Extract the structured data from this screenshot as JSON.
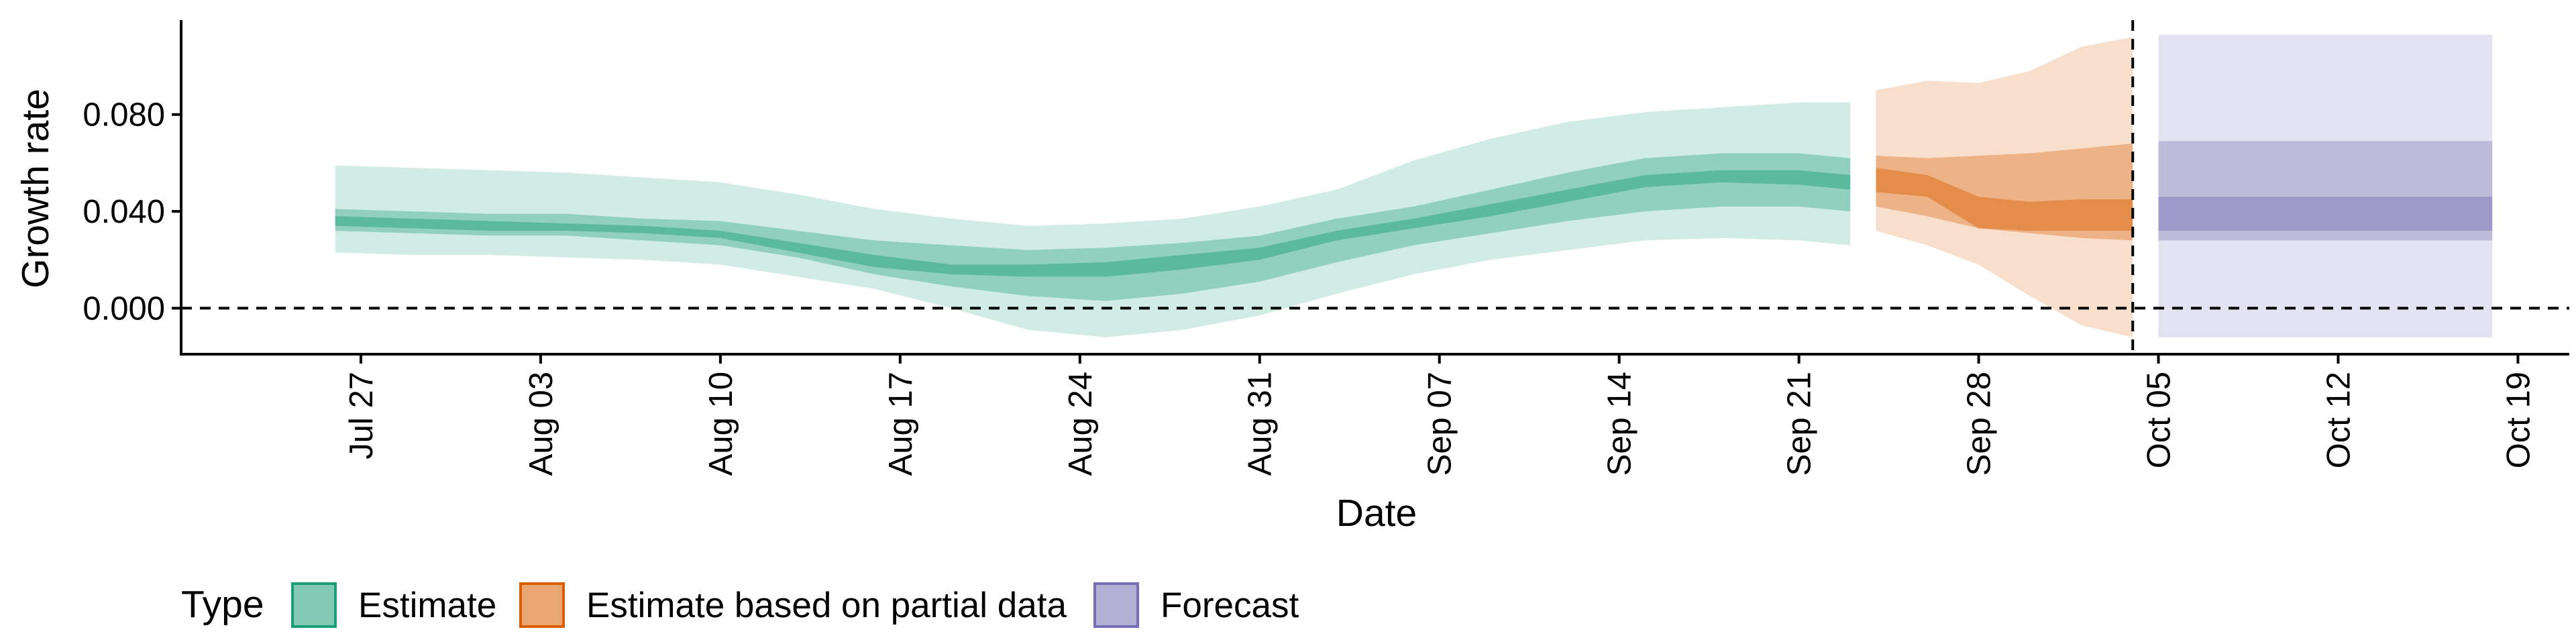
{
  "chart_data": {
    "type": "area",
    "title": "",
    "xlabel": "Date",
    "ylabel": "Growth rate",
    "x_range": [
      "2020-07-20",
      "2020-10-21"
    ],
    "ylim": [
      -0.019,
      0.119
    ],
    "y_ticks": [
      0.0,
      0.04,
      0.08
    ],
    "y_tick_labels": [
      "0.000",
      "0.040",
      "0.080"
    ],
    "x_ticks": [
      "2020-07-27",
      "2020-08-03",
      "2020-08-10",
      "2020-08-17",
      "2020-08-24",
      "2020-08-31",
      "2020-09-07",
      "2020-09-14",
      "2020-09-21",
      "2020-09-28",
      "2020-10-05",
      "2020-10-12",
      "2020-10-19"
    ],
    "x_tick_labels": [
      "Jul 27",
      "Aug 03",
      "Aug 10",
      "Aug 17",
      "Aug 24",
      "Aug 31",
      "Sep 07",
      "Sep 14",
      "Sep 21",
      "Sep 28",
      "Oct 05",
      "Oct 12",
      "Oct 19"
    ],
    "hline": 0.0,
    "vline": "2020-10-04",
    "grid": false,
    "legend": {
      "title": "Type",
      "position": "bottom",
      "items": [
        {
          "label": "Estimate",
          "color": "#1b9e77"
        },
        {
          "label": "Estimate based on partial data",
          "color": "#d95f02"
        },
        {
          "label": "Forecast",
          "color": "#7570b3"
        }
      ]
    },
    "series": [
      {
        "name": "Estimate",
        "color": "#1b9e77",
        "points": [
          {
            "x": "2020-07-26",
            "lo90": 0.023,
            "lo50": 0.032,
            "lo20": 0.034,
            "hi20": 0.038,
            "hi50": 0.041,
            "hi90": 0.059
          },
          {
            "x": "2020-07-29",
            "lo90": 0.022,
            "lo50": 0.031,
            "lo20": 0.033,
            "hi20": 0.037,
            "hi50": 0.04,
            "hi90": 0.058
          },
          {
            "x": "2020-08-01",
            "lo90": 0.022,
            "lo50": 0.03,
            "lo20": 0.032,
            "hi20": 0.036,
            "hi50": 0.039,
            "hi90": 0.057
          },
          {
            "x": "2020-08-04",
            "lo90": 0.021,
            "lo50": 0.03,
            "lo20": 0.032,
            "hi20": 0.035,
            "hi50": 0.039,
            "hi90": 0.056
          },
          {
            "x": "2020-08-07",
            "lo90": 0.02,
            "lo50": 0.028,
            "lo20": 0.031,
            "hi20": 0.034,
            "hi50": 0.037,
            "hi90": 0.054
          },
          {
            "x": "2020-08-10",
            "lo90": 0.018,
            "lo50": 0.026,
            "lo20": 0.029,
            "hi20": 0.032,
            "hi50": 0.036,
            "hi90": 0.052
          },
          {
            "x": "2020-08-13",
            "lo90": 0.013,
            "lo50": 0.021,
            "lo20": 0.023,
            "hi20": 0.027,
            "hi50": 0.032,
            "hi90": 0.047
          },
          {
            "x": "2020-08-16",
            "lo90": 0.008,
            "lo50": 0.014,
            "lo20": 0.017,
            "hi20": 0.022,
            "hi50": 0.028,
            "hi90": 0.041
          },
          {
            "x": "2020-08-19",
            "lo90": 0.0,
            "lo50": 0.009,
            "lo20": 0.014,
            "hi20": 0.018,
            "hi50": 0.026,
            "hi90": 0.037
          },
          {
            "x": "2020-08-22",
            "lo90": -0.009,
            "lo50": 0.005,
            "lo20": 0.013,
            "hi20": 0.018,
            "hi50": 0.024,
            "hi90": 0.034
          },
          {
            "x": "2020-08-25",
            "lo90": -0.012,
            "lo50": 0.003,
            "lo20": 0.013,
            "hi20": 0.019,
            "hi50": 0.025,
            "hi90": 0.035
          },
          {
            "x": "2020-08-28",
            "lo90": -0.009,
            "lo50": 0.006,
            "lo20": 0.016,
            "hi20": 0.022,
            "hi50": 0.027,
            "hi90": 0.037
          },
          {
            "x": "2020-08-31",
            "lo90": -0.003,
            "lo50": 0.011,
            "lo20": 0.02,
            "hi20": 0.025,
            "hi50": 0.03,
            "hi90": 0.042
          },
          {
            "x": "2020-09-03",
            "lo90": 0.006,
            "lo50": 0.019,
            "lo20": 0.028,
            "hi20": 0.032,
            "hi50": 0.037,
            "hi90": 0.049
          },
          {
            "x": "2020-09-06",
            "lo90": 0.014,
            "lo50": 0.026,
            "lo20": 0.033,
            "hi20": 0.037,
            "hi50": 0.042,
            "hi90": 0.061
          },
          {
            "x": "2020-09-09",
            "lo90": 0.02,
            "lo50": 0.031,
            "lo20": 0.038,
            "hi20": 0.043,
            "hi50": 0.049,
            "hi90": 0.07
          },
          {
            "x": "2020-09-12",
            "lo90": 0.024,
            "lo50": 0.036,
            "lo20": 0.044,
            "hi20": 0.049,
            "hi50": 0.056,
            "hi90": 0.077
          },
          {
            "x": "2020-09-15",
            "lo90": 0.028,
            "lo50": 0.04,
            "lo20": 0.05,
            "hi20": 0.055,
            "hi50": 0.062,
            "hi90": 0.081
          },
          {
            "x": "2020-09-18",
            "lo90": 0.029,
            "lo50": 0.042,
            "lo20": 0.052,
            "hi20": 0.057,
            "hi50": 0.064,
            "hi90": 0.083
          },
          {
            "x": "2020-09-21",
            "lo90": 0.028,
            "lo50": 0.042,
            "lo20": 0.051,
            "hi20": 0.057,
            "hi50": 0.064,
            "hi90": 0.085
          },
          {
            "x": "2020-09-23",
            "lo90": 0.026,
            "lo50": 0.04,
            "lo20": 0.049,
            "hi20": 0.055,
            "hi50": 0.062,
            "hi90": 0.085
          }
        ]
      },
      {
        "name": "Estimate based on partial data",
        "color": "#d95f02",
        "points": [
          {
            "x": "2020-09-24",
            "lo90": 0.032,
            "lo50": 0.042,
            "lo20": 0.048,
            "hi20": 0.058,
            "hi50": 0.063,
            "hi90": 0.09
          },
          {
            "x": "2020-09-26",
            "lo90": 0.026,
            "lo50": 0.038,
            "lo20": 0.046,
            "hi20": 0.055,
            "hi50": 0.062,
            "hi90": 0.094
          },
          {
            "x": "2020-09-28",
            "lo90": 0.018,
            "lo50": 0.033,
            "lo20": 0.033,
            "hi20": 0.046,
            "hi50": 0.063,
            "hi90": 0.093
          },
          {
            "x": "2020-09-30",
            "lo90": 0.005,
            "lo50": 0.031,
            "lo20": 0.032,
            "hi20": 0.044,
            "hi50": 0.064,
            "hi90": 0.098
          },
          {
            "x": "2020-10-02",
            "lo90": -0.007,
            "lo50": 0.029,
            "lo20": 0.032,
            "hi20": 0.045,
            "hi50": 0.066,
            "hi90": 0.108
          },
          {
            "x": "2020-10-04",
            "lo90": -0.012,
            "lo50": 0.028,
            "lo20": 0.032,
            "hi20": 0.045,
            "hi50": 0.068,
            "hi90": 0.112
          }
        ]
      },
      {
        "name": "Forecast",
        "color": "#7570b3",
        "points": [
          {
            "x": "2020-10-05",
            "lo90": -0.012,
            "lo50": 0.028,
            "lo20": 0.032,
            "hi20": 0.046,
            "hi50": 0.069,
            "hi90": 0.113
          },
          {
            "x": "2020-10-18",
            "lo90": -0.012,
            "lo50": 0.028,
            "lo20": 0.032,
            "hi20": 0.046,
            "hi50": 0.069,
            "hi90": 0.113
          }
        ]
      }
    ]
  }
}
